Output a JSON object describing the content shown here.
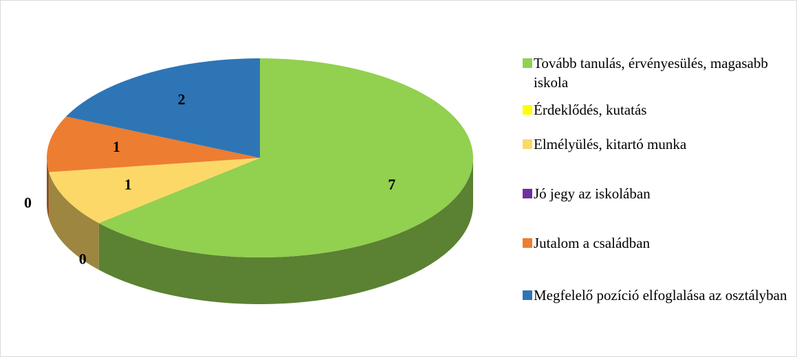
{
  "chart_data": {
    "type": "pie3d",
    "categories": [
      "Tovább tanulás, érvényesülés, magasabb iskola",
      "Érdeklődés, kutatás",
      "Elmélyülés, kitartó munka",
      "Jó jegy az iskolában",
      "Jutalom a családban",
      "Megfelelő pozíció elfoglalása az osztályban"
    ],
    "values": [
      7,
      0,
      1,
      0,
      1,
      2
    ],
    "colors": [
      "#92d050",
      "#ffff00",
      "#fcd868",
      "#7030a0",
      "#ed7d31",
      "#2e75b6"
    ],
    "legend": "right"
  }
}
